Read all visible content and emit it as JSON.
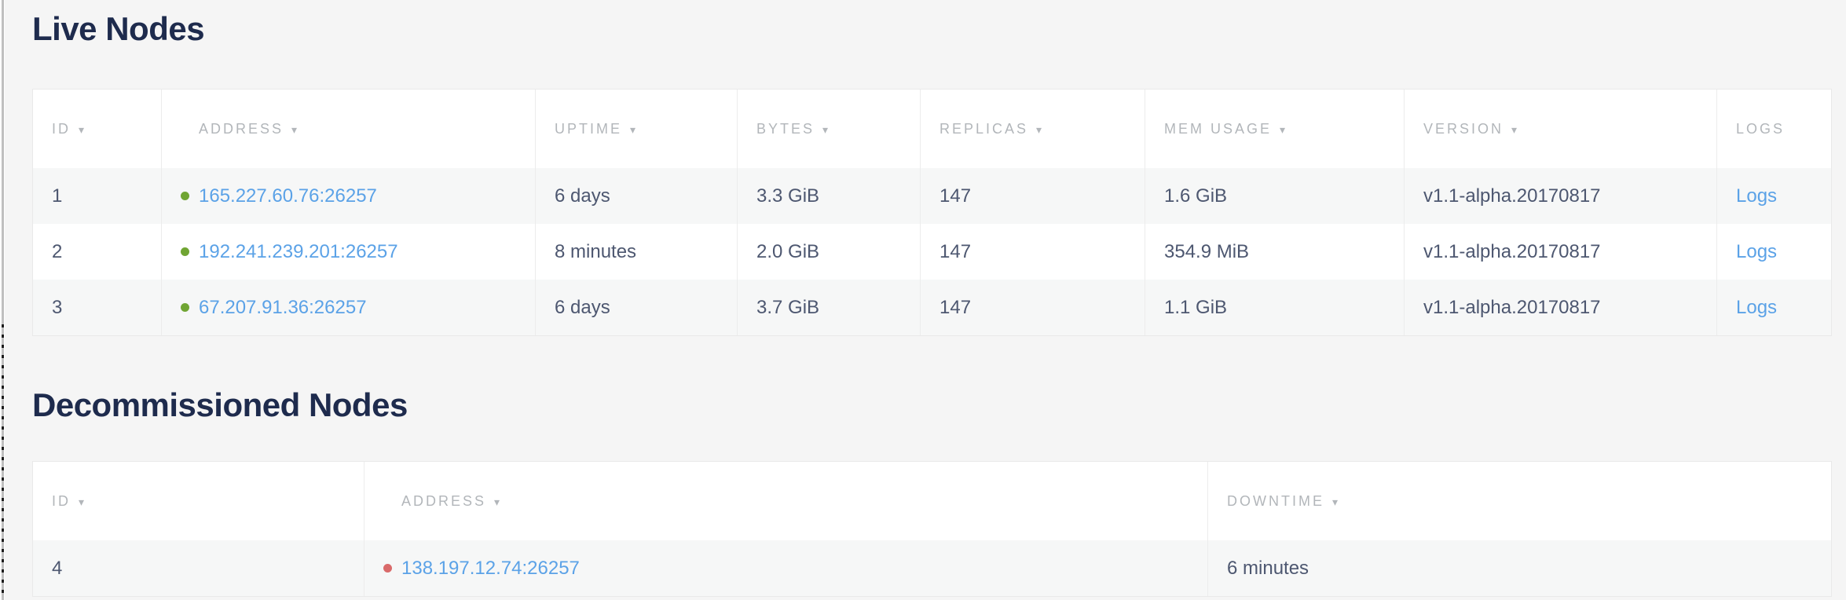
{
  "colors": {
    "page-bg": "#f5f5f5",
    "heading": "#1e2b4d",
    "cell-text": "#4d5770",
    "header-text": "#b2b6ba",
    "link": "#5ba2e7",
    "live-dot": "#70a533",
    "dead-dot": "#d96a6a",
    "table-border": "#e9e9e9",
    "col-border": "#ececec",
    "stripe": "#f6f7f7",
    "table-bg": "#ffffff"
  },
  "icons": {
    "sort_arrow": "▾"
  },
  "live_nodes": {
    "title": "Live Nodes",
    "columns": [
      {
        "label": "ID",
        "sortable": true
      },
      {
        "label": "ADDRESS",
        "sortable": true
      },
      {
        "label": "UPTIME",
        "sortable": true
      },
      {
        "label": "BYTES",
        "sortable": true
      },
      {
        "label": "REPLICAS",
        "sortable": true
      },
      {
        "label": "MEM USAGE",
        "sortable": true
      },
      {
        "label": "VERSION",
        "sortable": true
      },
      {
        "label": "LOGS",
        "sortable": false
      }
    ],
    "rows": [
      {
        "id": "1",
        "status": "live",
        "address": "165.227.60.76:26257",
        "uptime": "6 days",
        "bytes": "3.3 GiB",
        "replicas": "147",
        "mem_usage": "1.6 GiB",
        "version": "v1.1-alpha.20170817",
        "logs": "Logs"
      },
      {
        "id": "2",
        "status": "live",
        "address": "192.241.239.201:26257",
        "uptime": "8 minutes",
        "bytes": "2.0 GiB",
        "replicas": "147",
        "mem_usage": "354.9 MiB",
        "version": "v1.1-alpha.20170817",
        "logs": "Logs"
      },
      {
        "id": "3",
        "status": "live",
        "address": "67.207.91.36:26257",
        "uptime": "6 days",
        "bytes": "3.7 GiB",
        "replicas": "147",
        "mem_usage": "1.1 GiB",
        "version": "v1.1-alpha.20170817",
        "logs": "Logs"
      }
    ]
  },
  "decommissioned_nodes": {
    "title": "Decommissioned Nodes",
    "columns": [
      {
        "label": "ID",
        "sortable": true
      },
      {
        "label": "ADDRESS",
        "sortable": true
      },
      {
        "label": "DOWNTIME",
        "sortable": true
      }
    ],
    "rows": [
      {
        "id": "4",
        "status": "decommissioned",
        "address": "138.197.12.74:26257",
        "downtime": "6 minutes"
      }
    ]
  }
}
